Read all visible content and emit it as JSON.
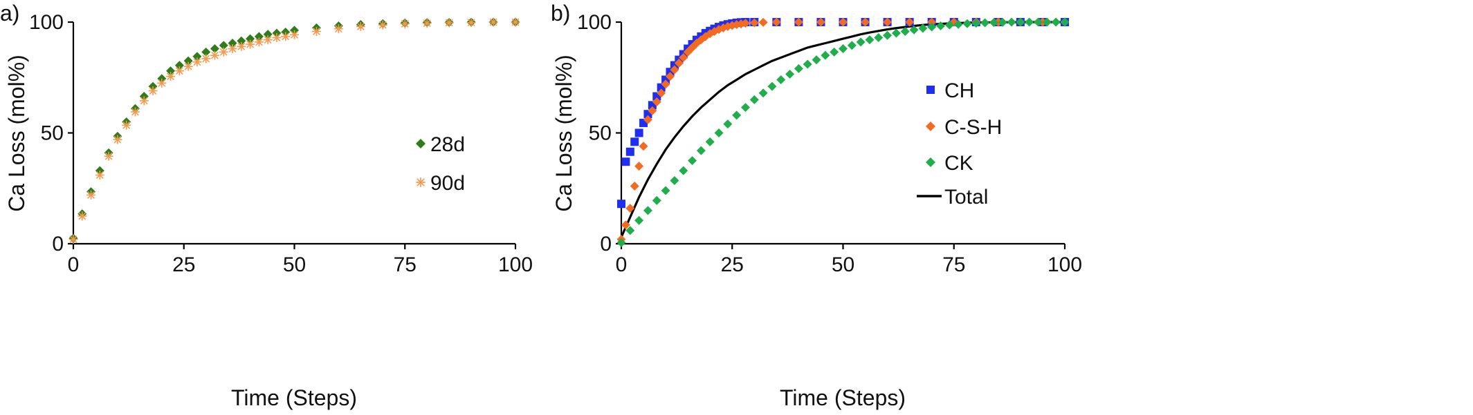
{
  "chart_data": [
    {
      "type": "scatter",
      "panel_label": "a)",
      "xlabel": "Time (Steps)",
      "ylabel": "Ca Loss (mol%)",
      "xlim": [
        0,
        100
      ],
      "ylim": [
        0,
        100
      ],
      "xticks": [
        "0",
        "25",
        "50",
        "75",
        "100"
      ],
      "yticks": [
        "0",
        "50",
        "100"
      ],
      "legend_position": "center-right",
      "grid": false,
      "series": [
        {
          "name": "28d",
          "marker": "diamond",
          "color": "#2e7d1a",
          "points": [
            [
              0,
              2.5
            ],
            [
              2,
              13.5
            ],
            [
              4,
              23.5
            ],
            [
              6,
              33
            ],
            [
              8,
              41
            ],
            [
              10,
              48.5
            ],
            [
              12,
              55
            ],
            [
              14,
              61
            ],
            [
              16,
              66.5
            ],
            [
              18,
              71
            ],
            [
              20,
              74.5
            ],
            [
              22,
              78
            ],
            [
              24,
              80.5
            ],
            [
              26,
              82.5
            ],
            [
              28,
              84.5
            ],
            [
              30,
              86.5
            ],
            [
              32,
              88
            ],
            [
              34,
              89.5
            ],
            [
              36,
              90.5
            ],
            [
              38,
              91.5
            ],
            [
              40,
              92.5
            ],
            [
              42,
              93.5
            ],
            [
              44,
              94.5
            ],
            [
              46,
              95
            ],
            [
              48,
              95.5
            ],
            [
              50,
              96.3
            ],
            [
              55,
              97.4
            ],
            [
              60,
              98.3
            ],
            [
              65,
              98.9
            ],
            [
              70,
              99.3
            ],
            [
              75,
              99.6
            ],
            [
              80,
              99.8
            ],
            [
              85,
              99.9
            ],
            [
              90,
              100
            ],
            [
              95,
              100
            ],
            [
              100,
              100
            ]
          ]
        },
        {
          "name": "90d",
          "marker": "asterisk",
          "color": "#f39a4f",
          "points": [
            [
              0,
              2
            ],
            [
              2,
              12.5
            ],
            [
              4,
              22
            ],
            [
              6,
              31
            ],
            [
              8,
              39.5
            ],
            [
              10,
              47
            ],
            [
              12,
              53.5
            ],
            [
              14,
              59.5
            ],
            [
              16,
              64.5
            ],
            [
              18,
              69
            ],
            [
              20,
              72.5
            ],
            [
              22,
              75.5
            ],
            [
              24,
              78
            ],
            [
              26,
              80
            ],
            [
              28,
              82
            ],
            [
              30,
              83.5
            ],
            [
              32,
              85
            ],
            [
              34,
              86.5
            ],
            [
              36,
              88
            ],
            [
              38,
              89
            ],
            [
              40,
              90
            ],
            [
              42,
              91
            ],
            [
              44,
              92
            ],
            [
              46,
              93
            ],
            [
              48,
              93.5
            ],
            [
              50,
              94.3
            ],
            [
              55,
              95.8
            ],
            [
              60,
              97
            ],
            [
              65,
              98
            ],
            [
              70,
              98.7
            ],
            [
              75,
              99.2
            ],
            [
              80,
              99.5
            ],
            [
              85,
              99.7
            ],
            [
              90,
              99.8
            ],
            [
              95,
              100
            ],
            [
              100,
              100
            ]
          ]
        }
      ]
    },
    {
      "type": "scatter",
      "panel_label": "b)",
      "xlabel": "Time (Steps)",
      "ylabel": "Ca Loss (mol%)",
      "xlim": [
        0,
        100
      ],
      "ylim": [
        0,
        100
      ],
      "xticks": [
        "0",
        "25",
        "50",
        "75",
        "100"
      ],
      "yticks": [
        "0",
        "50",
        "100"
      ],
      "legend_position": "right",
      "grid": false,
      "series": [
        {
          "name": "CH",
          "marker": "square",
          "color": "#1f2ef0",
          "points": [
            [
              0,
              18
            ],
            [
              1,
              37
            ],
            [
              2,
              41.5
            ],
            [
              3,
              46
            ],
            [
              4,
              50
            ],
            [
              5,
              54.5
            ],
            [
              6,
              58.5
            ],
            [
              7,
              62.5
            ],
            [
              8,
              66.5
            ],
            [
              9,
              70.5
            ],
            [
              10,
              74
            ],
            [
              11,
              77.5
            ],
            [
              12,
              80.5
            ],
            [
              13,
              83
            ],
            [
              14,
              85.5
            ],
            [
              15,
              88
            ],
            [
              16,
              90
            ],
            [
              17,
              92
            ],
            [
              18,
              93.5
            ],
            [
              19,
              95
            ],
            [
              20,
              96
            ],
            [
              21,
              97
            ],
            [
              22,
              97.8
            ],
            [
              23,
              98.5
            ],
            [
              24,
              99
            ],
            [
              25,
              99.4
            ],
            [
              26,
              99.7
            ],
            [
              27,
              99.9
            ],
            [
              28,
              100
            ],
            [
              30,
              100
            ],
            [
              35,
              100
            ],
            [
              40,
              100
            ],
            [
              45,
              100
            ],
            [
              50,
              100
            ],
            [
              55,
              100
            ],
            [
              60,
              100
            ],
            [
              65,
              100
            ],
            [
              70,
              100
            ],
            [
              75,
              100
            ],
            [
              80,
              100
            ],
            [
              85,
              100
            ],
            [
              90,
              100
            ],
            [
              95,
              100
            ],
            [
              100,
              100
            ]
          ]
        },
        {
          "name": "C-S-H",
          "marker": "diamond",
          "color": "#f36b21",
          "points": [
            [
              0,
              2
            ],
            [
              1,
              8.5
            ],
            [
              2,
              16
            ],
            [
              3,
              26
            ],
            [
              4,
              35
            ],
            [
              5,
              44
            ],
            [
              6,
              56
            ],
            [
              7,
              60
            ],
            [
              8,
              64
            ],
            [
              9,
              68
            ],
            [
              10,
              72
            ],
            [
              11,
              75.5
            ],
            [
              12,
              78.5
            ],
            [
              13,
              81.5
            ],
            [
              14,
              84
            ],
            [
              15,
              86.5
            ],
            [
              16,
              88.5
            ],
            [
              17,
              90.5
            ],
            [
              18,
              92
            ],
            [
              19,
              93.5
            ],
            [
              20,
              94.8
            ],
            [
              21,
              95.8
            ],
            [
              22,
              96.7
            ],
            [
              23,
              97.4
            ],
            [
              24,
              98
            ],
            [
              25,
              98.5
            ],
            [
              26,
              98.9
            ],
            [
              27,
              99.2
            ],
            [
              28,
              99.5
            ],
            [
              30,
              99.7
            ],
            [
              32,
              99.9
            ],
            [
              35,
              100
            ],
            [
              40,
              100
            ],
            [
              45,
              100
            ],
            [
              50,
              100
            ],
            [
              55,
              100
            ],
            [
              60,
              100
            ],
            [
              65,
              100
            ],
            [
              70,
              100
            ],
            [
              75,
              100
            ],
            [
              80,
              100
            ],
            [
              85,
              100
            ],
            [
              90,
              100
            ],
            [
              95,
              100
            ],
            [
              100,
              100
            ]
          ]
        },
        {
          "name": "CK",
          "marker": "diamond",
          "color": "#1fae4b",
          "points": [
            [
              0,
              0.5
            ],
            [
              2,
              6
            ],
            [
              4,
              10.5
            ],
            [
              6,
              15
            ],
            [
              8,
              19.5
            ],
            [
              10,
              24
            ],
            [
              12,
              28.5
            ],
            [
              14,
              33
            ],
            [
              16,
              37.5
            ],
            [
              18,
              42
            ],
            [
              20,
              46
            ],
            [
              22,
              50
            ],
            [
              24,
              54
            ],
            [
              26,
              58
            ],
            [
              28,
              61.5
            ],
            [
              30,
              65
            ],
            [
              32,
              68
            ],
            [
              34,
              71
            ],
            [
              36,
              74
            ],
            [
              38,
              76.5
            ],
            [
              40,
              79
            ],
            [
              42,
              81
            ],
            [
              44,
              83
            ],
            [
              46,
              85
            ],
            [
              48,
              86.5
            ],
            [
              50,
              88
            ],
            [
              52,
              89.5
            ],
            [
              54,
              91
            ],
            [
              56,
              92
            ],
            [
              58,
              93
            ],
            [
              60,
              94
            ],
            [
              62,
              95
            ],
            [
              64,
              95.8
            ],
            [
              66,
              96.5
            ],
            [
              68,
              97.2
            ],
            [
              70,
              97.8
            ],
            [
              72,
              98.3
            ],
            [
              74,
              98.7
            ],
            [
              76,
              99
            ],
            [
              78,
              99.3
            ],
            [
              80,
              99.5
            ],
            [
              82,
              99.7
            ],
            [
              84,
              99.8
            ],
            [
              86,
              99.9
            ],
            [
              88,
              100
            ],
            [
              90,
              100
            ],
            [
              92,
              100
            ],
            [
              94,
              100
            ],
            [
              96,
              100
            ],
            [
              98,
              100
            ],
            [
              100,
              100
            ]
          ]
        },
        {
          "name": "Total",
          "marker": "line",
          "color": "#000000",
          "points": [
            [
              0,
              3
            ],
            [
              2,
              12
            ],
            [
              4,
              21
            ],
            [
              6,
              29
            ],
            [
              8,
              36
            ],
            [
              10,
              42.5
            ],
            [
              12,
              48
            ],
            [
              14,
              53
            ],
            [
              16,
              57.5
            ],
            [
              18,
              61.5
            ],
            [
              20,
              65
            ],
            [
              22,
              68.5
            ],
            [
              24,
              71.5
            ],
            [
              26,
              74
            ],
            [
              28,
              76.5
            ],
            [
              30,
              78.5
            ],
            [
              32,
              80.5
            ],
            [
              34,
              82.5
            ],
            [
              36,
              84
            ],
            [
              38,
              85.5
            ],
            [
              40,
              87
            ],
            [
              42,
              88.5
            ],
            [
              44,
              89.5
            ],
            [
              46,
              90.5
            ],
            [
              48,
              91.5
            ],
            [
              50,
              92.5
            ],
            [
              52,
              93.5
            ],
            [
              54,
              94.5
            ],
            [
              56,
              95.3
            ],
            [
              58,
              96
            ],
            [
              60,
              96.7
            ],
            [
              62,
              97.3
            ],
            [
              64,
              97.8
            ],
            [
              66,
              98.3
            ],
            [
              68,
              98.7
            ],
            [
              70,
              99
            ],
            [
              75,
              99.5
            ],
            [
              80,
              99.8
            ],
            [
              85,
              99.9
            ],
            [
              90,
              100
            ],
            [
              95,
              100
            ],
            [
              100,
              100
            ]
          ]
        }
      ]
    }
  ]
}
